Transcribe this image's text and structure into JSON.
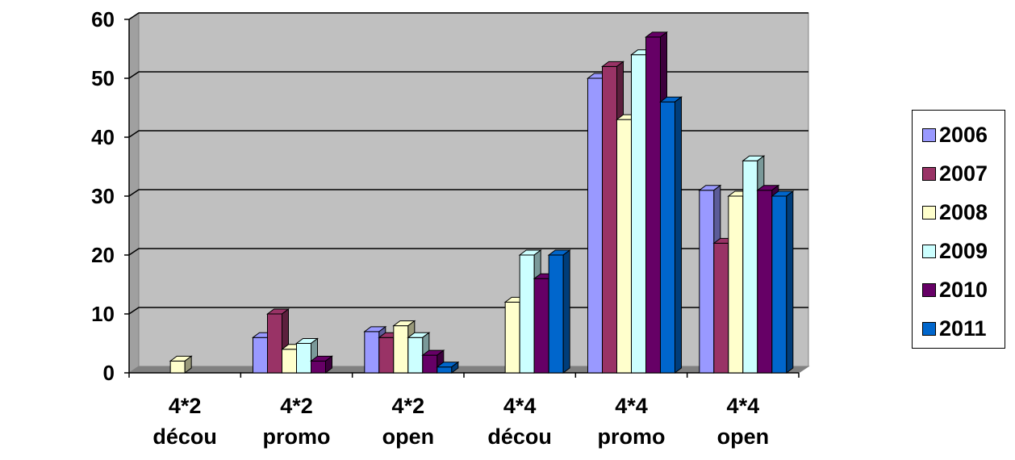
{
  "chart_data": {
    "type": "bar",
    "categories": [
      [
        "4*2",
        "décou"
      ],
      [
        "4*2",
        "promo"
      ],
      [
        "4*2",
        "open"
      ],
      [
        "4*4",
        "décou"
      ],
      [
        "4*4",
        "promo"
      ],
      [
        "4*4",
        "open"
      ]
    ],
    "series": [
      {
        "name": "2006",
        "color": "#9999ff",
        "values": [
          0,
          6,
          7,
          0,
          50,
          31
        ]
      },
      {
        "name": "2007",
        "color": "#993366",
        "values": [
          0,
          10,
          6,
          0,
          52,
          22
        ]
      },
      {
        "name": "2008",
        "color": "#ffffcc",
        "values": [
          2,
          4,
          8,
          12,
          43,
          30
        ]
      },
      {
        "name": "2009",
        "color": "#ccffff",
        "values": [
          0,
          5,
          6,
          20,
          54,
          36
        ]
      },
      {
        "name": "2010",
        "color": "#660066",
        "values": [
          0,
          2,
          3,
          16,
          57,
          31
        ]
      },
      {
        "name": "2011",
        "color": "#0066cc",
        "values": [
          0,
          0,
          1,
          20,
          46,
          30
        ]
      }
    ],
    "y_ticks": [
      "0",
      "10",
      "20",
      "30",
      "40",
      "50",
      "60"
    ],
    "ylim": [
      0,
      60
    ],
    "grid": true,
    "legend": "right",
    "style": "3d-clustered-column",
    "plot_background": "#c0c0c0"
  }
}
